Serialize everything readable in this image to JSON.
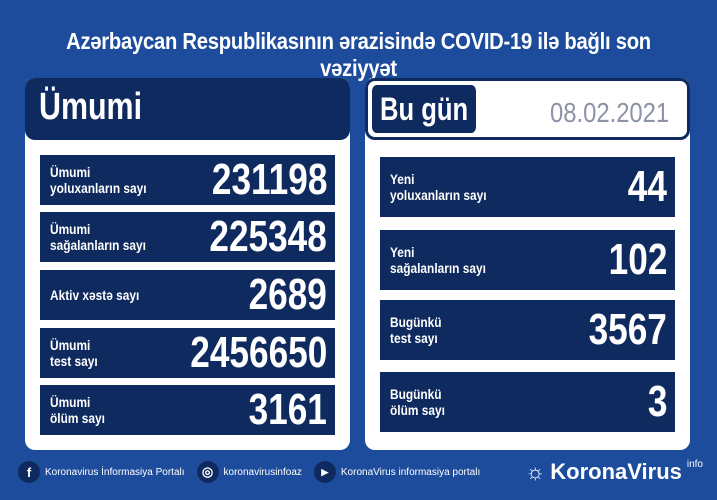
{
  "title": "Azərbaycan Respublikasının ərazisində COVID-19 ilə bağlı son vəziyyət",
  "total": {
    "heading": "Ümumi",
    "rows": [
      {
        "label": "Ümumi\nyoluxanların sayı",
        "value": "231198"
      },
      {
        "label": "Ümumi\nsağalanların sayı",
        "value": "225348"
      },
      {
        "label": "Aktiv xəstə sayı",
        "value": "2689"
      },
      {
        "label": "Ümumi\ntest sayı",
        "value": "2456650"
      },
      {
        "label": "Ümumi\nölüm sayı",
        "value": "3161"
      }
    ]
  },
  "today": {
    "heading": "Bu gün",
    "date": "08.02.2021",
    "rows": [
      {
        "label": "Yeni\nyoluxanların sayı",
        "value": "44"
      },
      {
        "label": "Yeni\nsağalanların sayı",
        "value": "102"
      },
      {
        "label": "Bugünkü\ntest sayı",
        "value": "3567"
      },
      {
        "label": "Bugünkü\nölüm sayı",
        "value": "3"
      }
    ]
  },
  "footer": {
    "facebook": "Koronavirus İnformasiya Portalı",
    "instagram": "koronavirusinfoaz",
    "youtube": "KoronaVirus informasiya portalı",
    "logo": "KoronaVirus",
    "logo_sup": "info"
  },
  "colors": {
    "background": "#1d4c9c",
    "navy": "#0f2a5e"
  }
}
